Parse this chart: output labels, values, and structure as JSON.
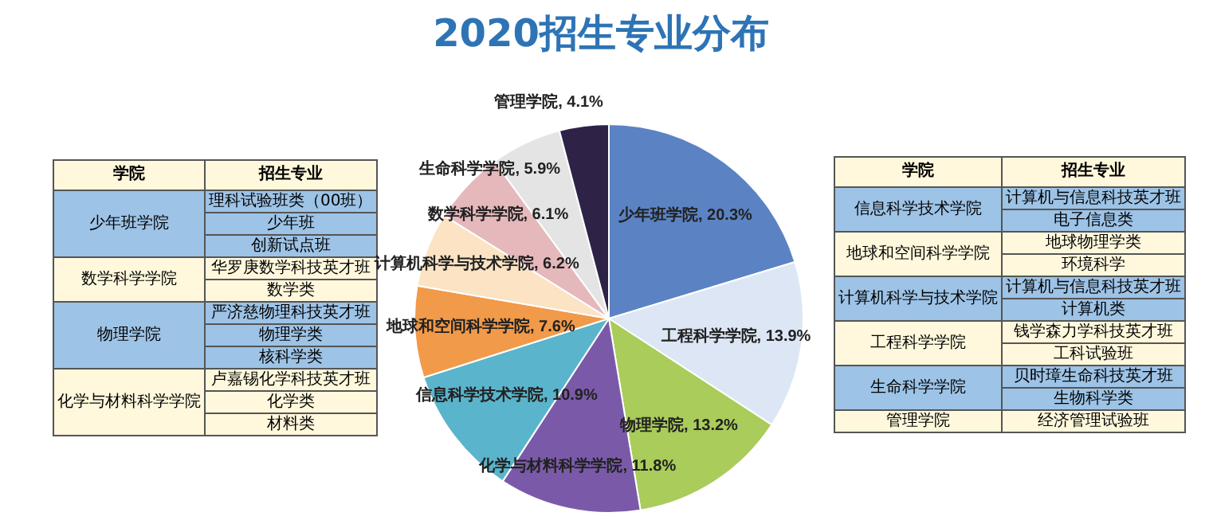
{
  "chart_data": [
    {
      "type": "other",
      "categories": [
        "学院",
        "招生专业"
      ],
      "y_categories": [
        "少年班学院",
        "数学科学学院",
        "物理学院",
        "化学与材料科学学院"
      ],
      "cell_labels": [
        [
          "理科试验班类（00班）",
          "少年班",
          "创新试点班"
        ],
        [
          "华罗庚数学科技英才班",
          "数学类"
        ],
        [
          "严济慈物理科技英才班",
          "物理学类",
          "核科学类"
        ],
        [
          "卢嘉锡化学科技英才班",
          "化学类",
          "材料类"
        ]
      ],
      "colors": [
        "#fff8dc",
        "#fff8dc"
      ]
    },
    {
      "type": "pie",
      "title": "2020招生专业分布",
      "categories": [
        "少年班学院",
        "工程科学学院",
        "物理学院",
        "化学与材料科学学院",
        "信息科学技术学院",
        "地球和空间科学学院",
        "计算机科学与技术学院",
        "数学科学学院",
        "生命科学学院",
        "管理学院"
      ],
      "values": [
        20.3,
        13.9,
        13.2,
        11.8,
        10.9,
        7.6,
        6.2,
        6.1,
        5.9,
        4.1
      ],
      "value_labels": [
        "20.3%",
        "13.9%",
        "13.2%",
        "11.8%",
        "10.9%",
        "7.6%",
        "6.2%",
        "6.1%",
        "5.9%",
        "4.1%"
      ],
      "colors": [
        "#5b83c4",
        "#dce6f4",
        "#a9cc5a",
        "#7a5aa8",
        "#5ab4cc",
        "#f19a4a",
        "#fbe3c3",
        "#e5b8bc",
        "#e4e4e4",
        "#2e2347"
      ],
      "legend": false
    },
    {
      "type": "other",
      "categories": [
        "学院",
        "招生专业"
      ],
      "y_categories": [
        "信息科学技术学院",
        "地球和空间科学学院",
        "计算机科学与技术学院",
        "工程科学学院",
        "生命科学学院",
        "管理学院"
      ],
      "cell_labels": [
        [
          "计算机与信息科技英才班",
          "电子信息类"
        ],
        [
          "地球物理学类",
          "环境科学"
        ],
        [
          "计算机与信息科技英才班",
          "计算机类"
        ],
        [
          "钱学森力学科技英才班",
          "工科试验班"
        ],
        [
          "贝时璋生命科技英才班",
          "生物科学类"
        ],
        [
          "经济管理试验班"
        ]
      ],
      "colors": [
        "#fff8dc",
        "#fff8dc"
      ]
    }
  ]
}
